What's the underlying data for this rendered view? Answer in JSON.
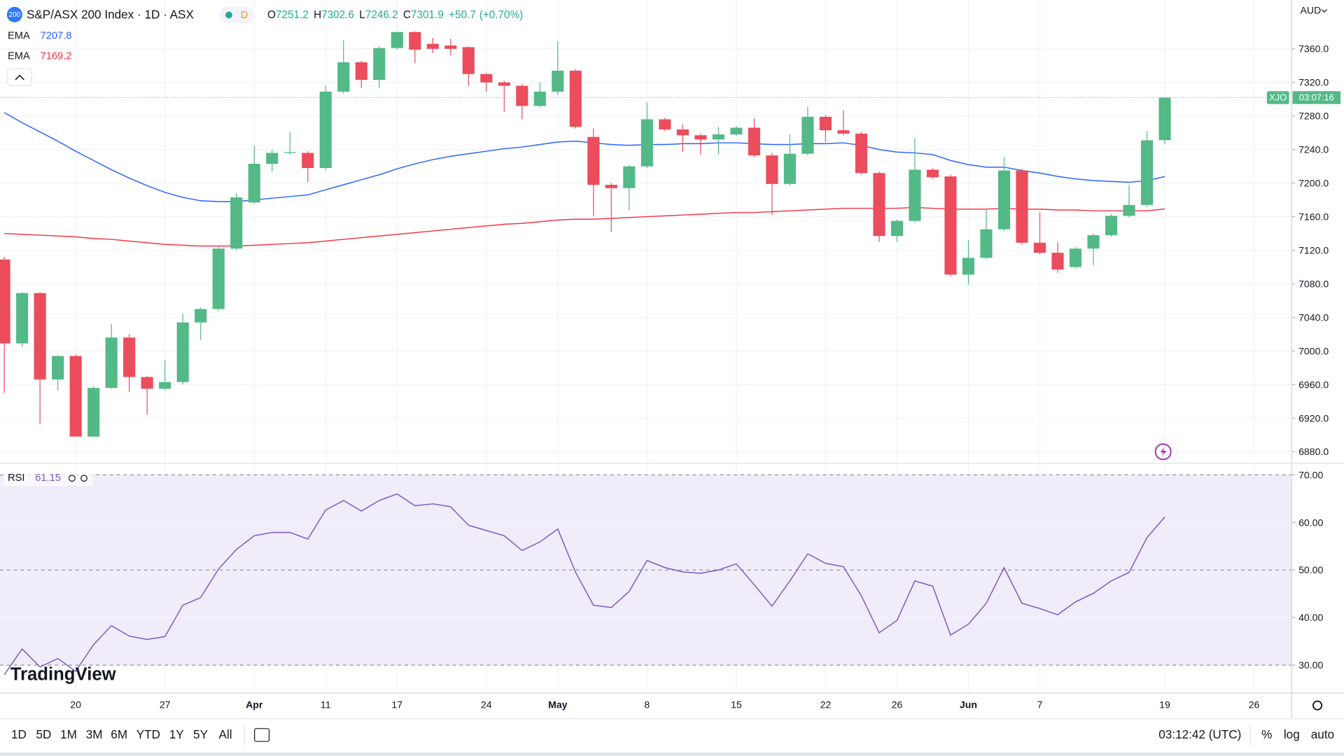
{
  "header": {
    "badge": "200",
    "title": "S&P/ASX 200 Index · 1D · ASX",
    "status": "D",
    "open_prefix": "O",
    "high_prefix": "H",
    "low_prefix": "L",
    "close_prefix": "C",
    "change": "+50.7",
    "change_pct": "(+0.70%)",
    "currency": "AUD",
    "symbol": "XJO",
    "countdown": "03:07:16",
    "logo": "TradingView"
  },
  "chart_data": [
    {
      "type": "candlestick",
      "categories": [
        null,
        null,
        null,
        null,
        "20",
        null,
        null,
        null,
        null,
        "27",
        null,
        null,
        null,
        null,
        "Apr",
        null,
        null,
        null,
        "11",
        null,
        null,
        null,
        "17",
        null,
        null,
        null,
        null,
        "24",
        null,
        null,
        null,
        "May",
        null,
        null,
        null,
        null,
        "8",
        null,
        null,
        null,
        null,
        "15",
        null,
        null,
        null,
        null,
        "22",
        null,
        null,
        null,
        "26",
        null,
        null,
        null,
        "Jun",
        null,
        null,
        null,
        "7",
        null,
        null,
        null,
        null,
        null,
        null,
        "19",
        null,
        null,
        null,
        null,
        "26"
      ],
      "open": [
        7109,
        7009,
        7069,
        6966,
        6994,
        6898,
        6956,
        7016,
        6969,
        6955,
        6963,
        7034,
        7050,
        7122,
        7177,
        7223,
        7236,
        7236,
        7218,
        7309,
        7344,
        7323,
        7361,
        7380,
        7366,
        7364,
        7362,
        7330,
        7320,
        7316,
        7292,
        7309,
        7334,
        7255,
        7198,
        7194,
        7220,
        7276,
        7264,
        7257,
        7252,
        7258,
        7266,
        7233,
        7199,
        7235,
        7279,
        7263,
        7259,
        7212,
        7137,
        7155,
        7216,
        7208,
        7091,
        7111,
        7145,
        7215,
        7129,
        7117,
        7100,
        7122,
        7138,
        7161,
        7174,
        7251.2,
        null,
        null,
        null,
        null,
        null
      ],
      "high": [
        7112,
        7070,
        7070,
        6995,
        6996,
        6958,
        7032,
        7020,
        6970,
        6989,
        7045,
        7052,
        7124,
        7188,
        7245,
        7240,
        7261,
        7238,
        7316,
        7370,
        7346,
        7363,
        7381,
        7381,
        7373,
        7372,
        7363,
        7331,
        7322,
        7318,
        7320,
        7369,
        7336,
        7265,
        7200,
        7222,
        7296,
        7278,
        7270,
        7259,
        7267,
        7268,
        7277,
        7236,
        7258,
        7291,
        7281,
        7287,
        7261,
        7214,
        7157,
        7254,
        7218,
        7210,
        7132,
        7168,
        7231,
        7217,
        7165,
        7130,
        7124,
        7140,
        7163,
        7198,
        7262,
        7302.6,
        null,
        null,
        null,
        null,
        null
      ],
      "low": [
        6950,
        7005,
        6913,
        6953,
        6898,
        6898,
        6955,
        6951,
        6924,
        6953,
        6960,
        7013,
        7048,
        7120,
        7175,
        7214,
        7234,
        7201,
        7216,
        7307,
        7313,
        7313,
        7359,
        7343,
        7355,
        7352,
        7316,
        7309,
        7285,
        7276,
        7290,
        7305,
        7265,
        7161,
        7142,
        7168,
        7218,
        7262,
        7237,
        7234,
        7234,
        7256,
        7231,
        7162,
        7197,
        7233,
        7249,
        7257,
        7210,
        7130,
        7130,
        7153,
        7205,
        7089,
        7079,
        7109,
        7143,
        7127,
        7115,
        7093,
        7098,
        7102,
        7136,
        7159,
        7172,
        7246.2,
        null,
        null,
        null,
        null,
        null
      ],
      "close": [
        7009,
        7069,
        6966,
        6994,
        6898,
        6956,
        7016,
        6969,
        6955,
        6963,
        7034,
        7050,
        7122,
        7183,
        7223,
        7236,
        7237,
        7218,
        7309,
        7344,
        7323,
        7361,
        7380,
        7359,
        7360,
        7360,
        7330,
        7320,
        7316,
        7292,
        7309,
        7334,
        7267,
        7198,
        7194,
        7220,
        7276,
        7264,
        7257,
        7252,
        7258,
        7266,
        7233,
        7199,
        7235,
        7279,
        7263,
        7259,
        7212,
        7137,
        7155,
        7216,
        7207,
        7091,
        7111,
        7145,
        7215,
        7129,
        7117,
        7097,
        7122,
        7138,
        7161,
        7174,
        7251,
        7301.9,
        null,
        null,
        null,
        null,
        null
      ],
      "up_color": "#53b987",
      "down_color": "#eb4d5c",
      "series": [
        {
          "name": "EMA",
          "color": "#2962ff",
          "values": [
            7284,
            7272,
            7261,
            7250,
            7238,
            7227,
            7216,
            7206,
            7197,
            7189,
            7183,
            7179,
            7178,
            7178,
            7180,
            7182,
            7184,
            7186,
            7192,
            7198,
            7204,
            7210,
            7217,
            7223,
            7228,
            7232,
            7235,
            7238,
            7241,
            7243,
            7246,
            7249,
            7250,
            7248,
            7246,
            7245,
            7246,
            7246,
            7247,
            7247,
            7248,
            7248,
            7247,
            7246,
            7246,
            7247,
            7247,
            7248,
            7245,
            7240,
            7237,
            7236,
            7234,
            7227,
            7222,
            7219,
            7219,
            7215,
            7212,
            7208,
            7205,
            7203,
            7202,
            7201,
            7203,
            7207.8,
            null,
            null,
            null,
            null,
            null
          ]
        },
        {
          "name": "EMA",
          "color": "#f23645",
          "values": [
            7140,
            7139,
            7138,
            7137,
            7136,
            7134,
            7133,
            7131,
            7129,
            7127,
            7126,
            7125,
            7125,
            7125,
            7126,
            7127,
            7128,
            7129,
            7131,
            7133,
            7135,
            7137,
            7139,
            7141,
            7143,
            7145,
            7147,
            7149,
            7151,
            7152,
            7154,
            7156,
            7157,
            7157,
            7158,
            7159,
            7160,
            7161,
            7162,
            7163,
            7164,
            7165,
            7165,
            7166,
            7167,
            7168,
            7169,
            7170,
            7170,
            7170,
            7170,
            7171,
            7170,
            7169,
            7169,
            7169,
            7170,
            7169,
            7169,
            7168,
            7168,
            7167,
            7167,
            7167,
            7167,
            7169.2,
            null,
            null,
            null,
            null,
            null
          ]
        }
      ],
      "ylim": [
        6866.7,
        7418.2
      ],
      "yticks": [
        {
          "value": 6880,
          "label": "6880.0"
        },
        {
          "value": 6920,
          "label": "6920.0"
        },
        {
          "value": 6960,
          "label": "6960.0"
        },
        {
          "value": 7000,
          "label": "7000.0"
        },
        {
          "value": 7040,
          "label": "7040.0"
        },
        {
          "value": 7080,
          "label": "7080.0"
        },
        {
          "value": 7120,
          "label": "7120.0"
        },
        {
          "value": 7160,
          "label": "7160.0"
        },
        {
          "value": 7200,
          "label": "7200.0"
        },
        {
          "value": 7240,
          "label": "7240.0"
        },
        {
          "value": 7280,
          "label": "7280.0"
        },
        {
          "value": 7320,
          "label": "7320.0"
        },
        {
          "value": 7360,
          "label": "7360.0"
        }
      ],
      "grid": true
    },
    {
      "type": "line",
      "series": [
        {
          "name": "RSI",
          "color": "#7e57c2",
          "values": [
            28,
            33.4,
            29.6,
            31.4,
            28.7,
            34.3,
            38.3,
            36.1,
            35.4,
            36,
            42.6,
            44.2,
            50.2,
            54.3,
            57.2,
            57.9,
            57.9,
            56.5,
            62.6,
            64.6,
            62.4,
            64.6,
            66,
            63.5,
            63.9,
            63.3,
            59.4,
            58.3,
            57.2,
            54.1,
            55.9,
            58.6,
            49.5,
            42.6,
            42.1,
            45.5,
            52,
            50.5,
            49.6,
            49.3,
            50,
            51.3,
            46.9,
            42.4,
            47.7,
            53.4,
            51.4,
            50.7,
            44.6,
            36.8,
            39.4,
            47.7,
            46.6,
            36.3,
            38.6,
            43,
            50.5,
            43,
            41.9,
            40.6,
            43.3,
            45.1,
            47.7,
            49.5,
            56.8,
            61.15,
            null,
            null,
            null,
            null,
            null
          ]
        }
      ],
      "ylim": [
        24.23,
        72.34
      ],
      "yticks": [
        {
          "value": 30,
          "label": "30.00"
        },
        {
          "value": 40,
          "label": "40.00"
        },
        {
          "value": 50,
          "label": "50.00"
        },
        {
          "value": 60,
          "label": "60.00"
        },
        {
          "value": 70,
          "label": "70.00"
        }
      ],
      "band": [
        30,
        70
      ],
      "levels": [
        30,
        50,
        70
      ],
      "band_color": "#f0ecfa",
      "grid": true
    }
  ],
  "footer": {
    "ranges": [
      "1D",
      "5D",
      "1M",
      "3M",
      "6M",
      "YTD",
      "1Y",
      "5Y",
      "All"
    ],
    "clock": "03:12:42 (UTC)",
    "percent": "%",
    "log": "log",
    "auto": "auto"
  }
}
